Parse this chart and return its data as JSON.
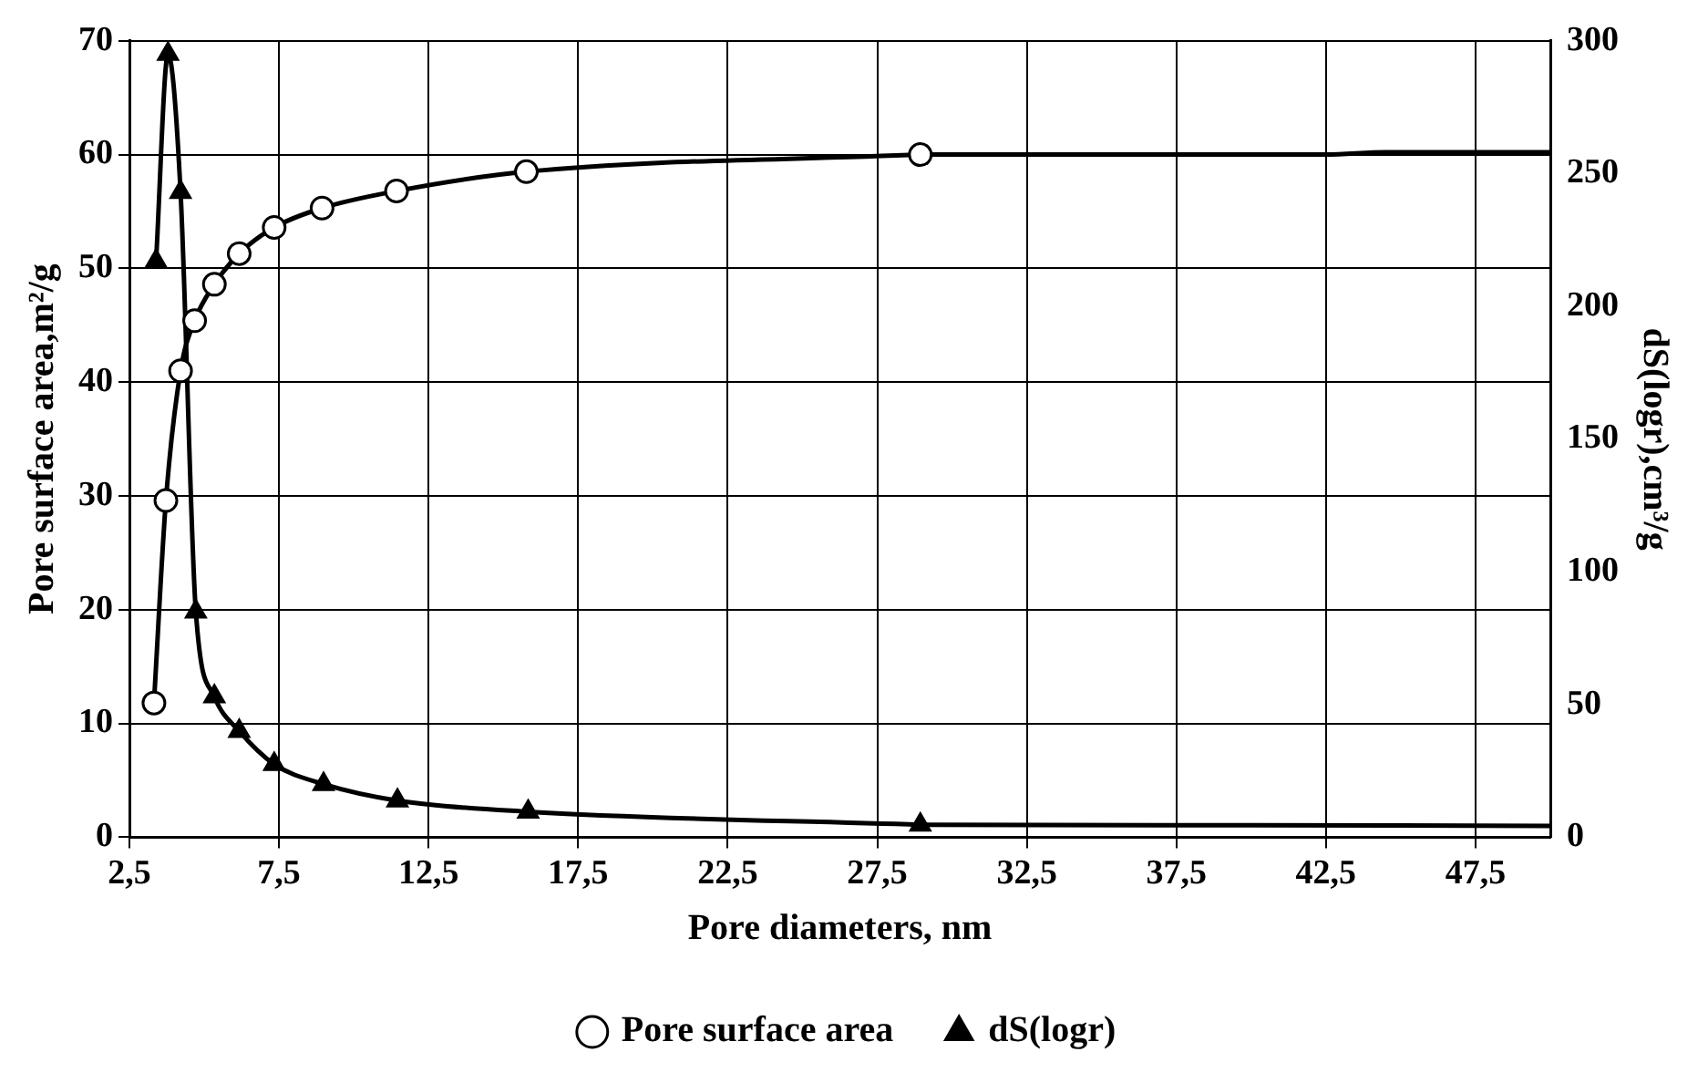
{
  "chart_data": {
    "type": "line",
    "xlabel": "Pore diameters, nm",
    "ylabel": "Pore surface area,m²/g",
    "y2label": "dS(logr),cm³/g",
    "xlim": [
      2.5,
      50
    ],
    "xticks": [
      {
        "value": 2.5,
        "label": "2,5"
      },
      {
        "value": 7.5,
        "label": "7,5"
      },
      {
        "value": 12.5,
        "label": "12,5"
      },
      {
        "value": 17.5,
        "label": "17,5"
      },
      {
        "value": 22.5,
        "label": "22,5"
      },
      {
        "value": 27.5,
        "label": "27,5"
      },
      {
        "value": 32.5,
        "label": "32,5"
      },
      {
        "value": 37.5,
        "label": "37,5"
      },
      {
        "value": 42.5,
        "label": "42,5"
      },
      {
        "value": 47.5,
        "label": "47,5"
      }
    ],
    "ylim": [
      0,
      70
    ],
    "yticks": [
      0,
      10,
      20,
      30,
      40,
      50,
      60,
      70
    ],
    "y2lim": [
      0,
      300
    ],
    "y2ticks": [
      0,
      50,
      100,
      150,
      200,
      250,
      300
    ],
    "grid": true,
    "legend": "bottom",
    "series": [
      {
        "name": "Pore surface area",
        "color": "#000000",
        "marker": "circle",
        "x": [
          3.32,
          3.72,
          4.21,
          4.68,
          5.34,
          6.17,
          7.34,
          8.94,
          11.43,
          15.77,
          28.94
        ],
        "values": [
          11.8,
          29.6,
          41.0,
          45.4,
          48.6,
          51.3,
          53.6,
          55.3,
          56.8,
          58.5,
          60.0
        ]
      },
      {
        "name": "dS(logr)",
        "color": "#000000",
        "marker": "triangle",
        "axis": "y2",
        "x": [
          3.39,
          3.79,
          4.21,
          4.72,
          5.34,
          6.17,
          7.34,
          8.99,
          11.46,
          15.83,
          28.94
        ],
        "values": [
          217,
          295,
          243,
          85,
          53,
          40,
          27.5,
          20,
          13.8,
          9.6,
          4.7
        ]
      },
      {
        "color": "#000000",
        "marker": "none",
        "x": [
          28.94,
          35,
          42.5,
          44.5,
          50
        ],
        "values": [
          60.0,
          60.0,
          60.0,
          60.2,
          60.2
        ]
      },
      {
        "color": "#000000",
        "marker": "none",
        "axis": "y2",
        "x": [
          28.94,
          40,
          50
        ],
        "values": [
          4.7,
          4.5,
          4.3
        ]
      }
    ]
  }
}
